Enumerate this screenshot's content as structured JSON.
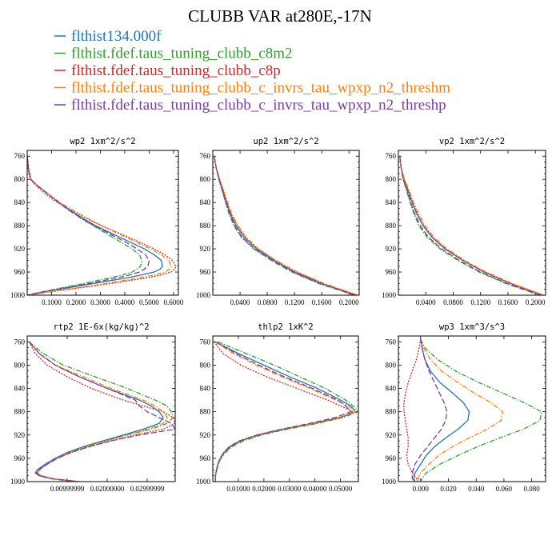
{
  "figure": {
    "title": "CLUBB VAR at280E,-17N"
  },
  "legend": [
    {
      "label": "flthist134.000f",
      "color": "#1f77b4",
      "dash": "solid"
    },
    {
      "label": "flthist.fdef.taus_tuning_clubb_c8m2",
      "color": "#2ca02c",
      "dash": "dashdot"
    },
    {
      "label": "flthist.fdef.taus_tuning_clubb_c8p",
      "color": "#d62728",
      "dash": "dotted"
    },
    {
      "label": "flthist.fdef.taus_tuning_clubb_c_invrs_tau_wpxp_n2_threshm",
      "color": "#ff7f0e",
      "dash": "dashdot"
    },
    {
      "label": "flthist.fdef.taus_tuning_clubb_c_invrs_tau_wpxp_n2_threshp",
      "color": "#7b3f9e",
      "dash": "longdash"
    }
  ],
  "chart_data": [
    {
      "type": "line",
      "title": "wp2  1xm^2/s^2",
      "xlim": [
        0,
        0.62
      ],
      "ylim": [
        1000,
        750
      ],
      "xticks": [
        0.1,
        0.2,
        0.3,
        0.4,
        0.5,
        0.6
      ],
      "xtick_labels": [
        "0.1000",
        "0.2000",
        "0.3000",
        "0.4000",
        "0.5000",
        "0.6000"
      ],
      "yticks": [
        760,
        800,
        840,
        880,
        920,
        960,
        1000
      ],
      "y": [
        760,
        780,
        800,
        810,
        820,
        830,
        840,
        850,
        860,
        870,
        880,
        890,
        900,
        910,
        920,
        930,
        940,
        950,
        955,
        960,
        965,
        970,
        980,
        990,
        995,
        1000
      ],
      "series": [
        {
          "name": "flthist134.000f",
          "values": [
            0.0,
            0.005,
            0.015,
            0.04,
            0.07,
            0.1,
            0.13,
            0.165,
            0.2,
            0.24,
            0.28,
            0.33,
            0.38,
            0.43,
            0.48,
            0.52,
            0.55,
            0.555,
            0.545,
            0.52,
            0.47,
            0.41,
            0.27,
            0.13,
            0.06,
            0.0
          ]
        },
        {
          "name": "flthist.fdef.taus_tuning_clubb_c8m2",
          "values": [
            0.0,
            0.005,
            0.015,
            0.04,
            0.07,
            0.1,
            0.13,
            0.16,
            0.195,
            0.23,
            0.27,
            0.31,
            0.35,
            0.39,
            0.43,
            0.46,
            0.47,
            0.465,
            0.45,
            0.43,
            0.39,
            0.34,
            0.23,
            0.11,
            0.05,
            0.0
          ]
        },
        {
          "name": "flthist.fdef.taus_tuning_clubb_c8p",
          "values": [
            0.0,
            0.003,
            0.012,
            0.035,
            0.06,
            0.09,
            0.125,
            0.165,
            0.21,
            0.255,
            0.305,
            0.36,
            0.415,
            0.47,
            0.52,
            0.565,
            0.595,
            0.61,
            0.605,
            0.59,
            0.55,
            0.49,
            0.34,
            0.17,
            0.08,
            0.0
          ]
        },
        {
          "name": "flthist.fdef.taus_tuning_clubb_c_invrs_tau_wpxp_n2_threshm",
          "values": [
            0.0,
            0.005,
            0.015,
            0.04,
            0.07,
            0.1,
            0.135,
            0.175,
            0.215,
            0.26,
            0.305,
            0.355,
            0.405,
            0.455,
            0.505,
            0.55,
            0.58,
            0.59,
            0.585,
            0.565,
            0.52,
            0.46,
            0.32,
            0.16,
            0.07,
            0.0
          ]
        },
        {
          "name": "flthist.fdef.taus_tuning_clubb_c_invrs_tau_wpxp_n2_threshp",
          "values": [
            0.0,
            0.005,
            0.015,
            0.04,
            0.07,
            0.1,
            0.13,
            0.16,
            0.195,
            0.235,
            0.275,
            0.32,
            0.365,
            0.41,
            0.45,
            0.485,
            0.5,
            0.495,
            0.48,
            0.46,
            0.42,
            0.37,
            0.25,
            0.12,
            0.055,
            0.0
          ]
        }
      ]
    },
    {
      "type": "line",
      "title": "up2  1xm^2/s^2",
      "xlim": [
        0,
        0.215
      ],
      "ylim": [
        1000,
        750
      ],
      "xticks": [
        0.04,
        0.08,
        0.12,
        0.16,
        0.2
      ],
      "xtick_labels": [
        "0.0400",
        "0.0800",
        "0.1200",
        "0.1600",
        "0.2000"
      ],
      "yticks": [
        760,
        800,
        840,
        880,
        920,
        960,
        1000
      ],
      "y": [
        760,
        780,
        800,
        820,
        840,
        860,
        880,
        900,
        920,
        940,
        960,
        980,
        1000
      ],
      "series": [
        {
          "name": "flthist134.000f",
          "values": [
            0.002,
            0.005,
            0.009,
            0.015,
            0.02,
            0.026,
            0.034,
            0.046,
            0.064,
            0.09,
            0.12,
            0.16,
            0.21
          ]
        },
        {
          "name": "flthist.fdef.taus_tuning_clubb_c8m2",
          "values": [
            0.002,
            0.005,
            0.009,
            0.014,
            0.019,
            0.024,
            0.031,
            0.042,
            0.06,
            0.086,
            0.116,
            0.156,
            0.208
          ]
        },
        {
          "name": "flthist.fdef.taus_tuning_clubb_c8p",
          "values": [
            0.002,
            0.005,
            0.01,
            0.016,
            0.021,
            0.027,
            0.036,
            0.048,
            0.066,
            0.092,
            0.123,
            0.163,
            0.212
          ]
        },
        {
          "name": "flthist.fdef.taus_tuning_clubb_c_invrs_tau_wpxp_n2_threshm",
          "values": [
            0.002,
            0.005,
            0.01,
            0.016,
            0.022,
            0.028,
            0.037,
            0.049,
            0.067,
            0.093,
            0.124,
            0.164,
            0.213
          ]
        },
        {
          "name": "flthist.fdef.taus_tuning_clubb_c_invrs_tau_wpxp_n2_threshp",
          "values": [
            0.002,
            0.005,
            0.009,
            0.014,
            0.019,
            0.025,
            0.032,
            0.043,
            0.061,
            0.087,
            0.118,
            0.158,
            0.209
          ]
        }
      ]
    },
    {
      "type": "line",
      "title": "vp2  1xm^2/s^2",
      "xlim": [
        0,
        0.215
      ],
      "ylim": [
        1000,
        750
      ],
      "xticks": [
        0.04,
        0.08,
        0.12,
        0.16,
        0.2
      ],
      "xtick_labels": [
        "0.0400",
        "0.0800",
        "0.1200",
        "0.1600",
        "0.2000"
      ],
      "yticks": [
        760,
        800,
        840,
        880,
        920,
        960,
        1000
      ],
      "y": [
        760,
        780,
        800,
        820,
        840,
        860,
        880,
        900,
        920,
        940,
        960,
        980,
        1000
      ],
      "series": [
        {
          "name": "flthist134.000f",
          "values": [
            0.002,
            0.004,
            0.008,
            0.014,
            0.02,
            0.027,
            0.036,
            0.049,
            0.068,
            0.094,
            0.125,
            0.164,
            0.21
          ]
        },
        {
          "name": "flthist.fdef.taus_tuning_clubb_c8m2",
          "values": [
            0.002,
            0.004,
            0.007,
            0.012,
            0.017,
            0.023,
            0.03,
            0.042,
            0.061,
            0.087,
            0.118,
            0.157,
            0.207
          ]
        },
        {
          "name": "flthist.fdef.taus_tuning_clubb_c8p",
          "values": [
            0.002,
            0.004,
            0.008,
            0.015,
            0.021,
            0.028,
            0.037,
            0.05,
            0.069,
            0.095,
            0.126,
            0.165,
            0.211
          ]
        },
        {
          "name": "flthist.fdef.taus_tuning_clubb_c_invrs_tau_wpxp_n2_threshm",
          "values": [
            0.002,
            0.004,
            0.009,
            0.016,
            0.022,
            0.03,
            0.039,
            0.052,
            0.071,
            0.097,
            0.128,
            0.167,
            0.212
          ]
        },
        {
          "name": "flthist.fdef.taus_tuning_clubb_c_invrs_tau_wpxp_n2_threshp",
          "values": [
            0.002,
            0.004,
            0.007,
            0.013,
            0.018,
            0.024,
            0.032,
            0.044,
            0.063,
            0.089,
            0.12,
            0.159,
            0.208
          ]
        }
      ]
    },
    {
      "type": "line",
      "title": "rtp2  1E-6x(kg/kg)^2",
      "xlim": [
        0,
        0.037
      ],
      "ylim": [
        1000,
        750
      ],
      "xticks": [
        0.01,
        0.02,
        0.03
      ],
      "xtick_labels": [
        "0.00999999",
        "0.02000000",
        "0.02999999"
      ],
      "yticks": [
        760,
        800,
        840,
        880,
        920,
        960,
        1000
      ],
      "y": [
        760,
        780,
        800,
        820,
        840,
        860,
        870,
        880,
        890,
        900,
        910,
        920,
        930,
        940,
        950,
        960,
        970,
        980,
        985,
        990,
        995,
        1000
      ],
      "series": [
        {
          "name": "flthist134.000f",
          "values": [
            0.0005,
            0.003,
            0.007,
            0.013,
            0.02,
            0.028,
            0.031,
            0.033,
            0.034,
            0.033,
            0.029,
            0.024,
            0.019,
            0.014,
            0.01,
            0.007,
            0.0045,
            0.0025,
            0.002,
            0.003,
            0.006,
            0.012
          ]
        },
        {
          "name": "flthist.fdef.taus_tuning_clubb_c8m2",
          "values": [
            0.0005,
            0.004,
            0.009,
            0.017,
            0.025,
            0.032,
            0.035,
            0.036,
            0.0365,
            0.035,
            0.031,
            0.025,
            0.0195,
            0.0145,
            0.0105,
            0.0075,
            0.005,
            0.003,
            0.0025,
            0.0035,
            0.0065,
            0.013
          ]
        },
        {
          "name": "flthist.fdef.taus_tuning_clubb_c8p",
          "values": [
            0.0005,
            0.002,
            0.005,
            0.01,
            0.016,
            0.024,
            0.029,
            0.034,
            0.0365,
            0.037,
            0.034,
            0.027,
            0.021,
            0.0155,
            0.011,
            0.0075,
            0.005,
            0.003,
            0.0025,
            0.0035,
            0.0065,
            0.013
          ]
        },
        {
          "name": "flthist.fdef.taus_tuning_clubb_c_invrs_tau_wpxp_n2_threshm",
          "values": [
            0.0005,
            0.003,
            0.007,
            0.014,
            0.021,
            0.029,
            0.032,
            0.034,
            0.035,
            0.034,
            0.03,
            0.025,
            0.02,
            0.015,
            0.0105,
            0.0075,
            0.005,
            0.003,
            0.0025,
            0.0035,
            0.0065,
            0.012
          ]
        },
        {
          "name": "flthist.fdef.taus_tuning_clubb_c_invrs_tau_wpxp_n2_threshp",
          "values": [
            0.0005,
            0.003,
            0.007,
            0.013,
            0.02,
            0.027,
            0.028,
            0.03,
            0.033,
            0.036,
            0.037,
            0.028,
            0.021,
            0.0155,
            0.011,
            0.0075,
            0.005,
            0.0028,
            0.0022,
            0.0032,
            0.006,
            0.012
          ]
        }
      ]
    },
    {
      "type": "line",
      "title": "thlp2  1xK^2",
      "xlim": [
        0,
        0.057
      ],
      "ylim": [
        1000,
        750
      ],
      "xticks": [
        0.01,
        0.02,
        0.03,
        0.04,
        0.05
      ],
      "xtick_labels": [
        "0.01000",
        "0.02000",
        "0.03000",
        "0.04000",
        "0.05000"
      ],
      "yticks": [
        760,
        800,
        840,
        880,
        920,
        960,
        1000
      ],
      "y": [
        760,
        780,
        800,
        820,
        840,
        860,
        870,
        880,
        890,
        900,
        910,
        920,
        930,
        940,
        950,
        960,
        970,
        980,
        990,
        1000
      ],
      "series": [
        {
          "name": "flthist134.000f",
          "values": [
            0.001,
            0.01,
            0.02,
            0.03,
            0.041,
            0.05,
            0.054,
            0.056,
            0.05,
            0.04,
            0.028,
            0.018,
            0.011,
            0.007,
            0.0045,
            0.003,
            0.002,
            0.0015,
            0.001,
            0.001
          ]
        },
        {
          "name": "flthist.fdef.taus_tuning_clubb_c8m2",
          "values": [
            0.002,
            0.013,
            0.024,
            0.034,
            0.044,
            0.052,
            0.055,
            0.057,
            0.051,
            0.041,
            0.029,
            0.019,
            0.012,
            0.0075,
            0.005,
            0.0032,
            0.0022,
            0.0016,
            0.0011,
            0.001
          ]
        },
        {
          "name": "flthist.fdef.taus_tuning_clubb_c8p",
          "values": [
            0.0005,
            0.004,
            0.011,
            0.021,
            0.033,
            0.045,
            0.05,
            0.055,
            0.05,
            0.039,
            0.027,
            0.017,
            0.0105,
            0.0065,
            0.0042,
            0.0028,
            0.0019,
            0.0014,
            0.001,
            0.001
          ]
        },
        {
          "name": "flthist.fdef.taus_tuning_clubb_c_invrs_tau_wpxp_n2_threshm",
          "values": [
            0.001,
            0.008,
            0.017,
            0.027,
            0.038,
            0.048,
            0.053,
            0.056,
            0.049,
            0.039,
            0.027,
            0.0175,
            0.0105,
            0.0065,
            0.0043,
            0.0029,
            0.002,
            0.0015,
            0.001,
            0.001
          ]
        },
        {
          "name": "flthist.fdef.taus_tuning_clubb_c_invrs_tau_wpxp_n2_threshp",
          "values": [
            0.001,
            0.009,
            0.018,
            0.028,
            0.039,
            0.049,
            0.052,
            0.054,
            0.048,
            0.038,
            0.027,
            0.0175,
            0.0105,
            0.0065,
            0.0043,
            0.0029,
            0.002,
            0.0015,
            0.001,
            0.001
          ]
        }
      ]
    },
    {
      "type": "line",
      "title": "wp3  1xm^3/s^3",
      "xlim": [
        -0.016,
        0.09
      ],
      "ylim": [
        1000,
        750
      ],
      "xticks": [
        0.0,
        0.02,
        0.04,
        0.06,
        0.08
      ],
      "xtick_labels": [
        "0.000",
        "0.020",
        "0.040",
        "0.060",
        "0.080"
      ],
      "yticks": [
        760,
        800,
        840,
        880,
        920,
        960,
        1000
      ],
      "y": [
        755,
        770,
        790,
        810,
        830,
        850,
        865,
        880,
        895,
        910,
        925,
        940,
        955,
        970,
        985,
        995,
        1000
      ],
      "series": [
        {
          "name": "flthist134.000f",
          "values": [
            0.0,
            0.001,
            0.003,
            0.007,
            0.014,
            0.024,
            0.031,
            0.035,
            0.034,
            0.027,
            0.018,
            0.01,
            0.004,
            0.0,
            -0.004,
            -0.005,
            -0.004
          ]
        },
        {
          "name": "flthist.fdef.taus_tuning_clubb_c8m2",
          "values": [
            0.0,
            0.003,
            0.012,
            0.025,
            0.042,
            0.061,
            0.075,
            0.087,
            0.086,
            0.074,
            0.057,
            0.041,
            0.027,
            0.014,
            0.004,
            0.001,
            0.0
          ]
        },
        {
          "name": "flthist.fdef.taus_tuning_clubb_c8p",
          "values": [
            0.0,
            -0.001,
            -0.003,
            -0.006,
            -0.009,
            -0.011,
            -0.012,
            -0.012,
            -0.011,
            -0.01,
            -0.009,
            -0.009,
            -0.01,
            -0.009,
            -0.006,
            -0.003,
            -0.002
          ]
        },
        {
          "name": "flthist.fdef.taus_tuning_clubb_c_invrs_tau_wpxp_n2_threshm",
          "values": [
            0.0,
            0.002,
            0.007,
            0.015,
            0.027,
            0.04,
            0.051,
            0.059,
            0.058,
            0.048,
            0.035,
            0.023,
            0.013,
            0.006,
            0.0,
            -0.002,
            -0.001
          ]
        },
        {
          "name": "flthist.fdef.taus_tuning_clubb_c_invrs_tau_wpxp_n2_threshp",
          "values": [
            0.0,
            0.001,
            0.003,
            0.006,
            0.01,
            0.014,
            0.017,
            0.019,
            0.018,
            0.015,
            0.01,
            0.005,
            0.0,
            -0.004,
            -0.006,
            -0.006,
            -0.004
          ]
        }
      ]
    }
  ]
}
